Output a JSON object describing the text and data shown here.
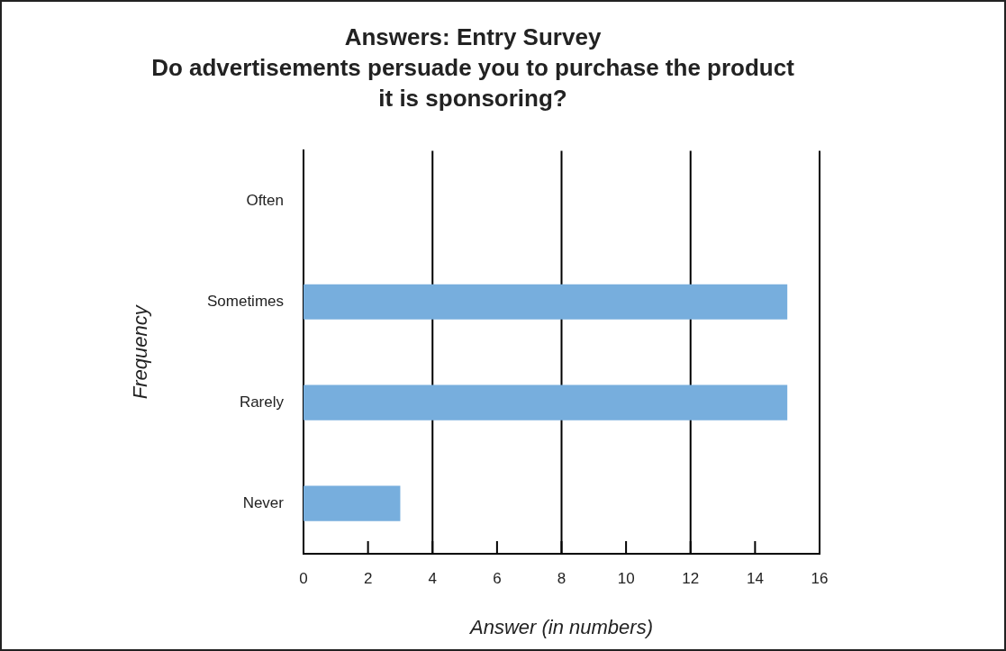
{
  "chart_data": {
    "type": "bar",
    "orientation": "horizontal",
    "title": "Answers: Entry Survey",
    "subtitle": "Do advertisements persuade you to purchase the product it is sponsoring?",
    "xlabel": "Answer (in numbers)",
    "ylabel": "Frequency",
    "categories": [
      "Often",
      "Sometimes",
      "Rarely",
      "Never"
    ],
    "values": [
      0,
      15,
      15,
      3
    ],
    "color": "#77aedd",
    "xlim": [
      0,
      16
    ],
    "xticks": [
      0,
      2,
      4,
      6,
      8,
      10,
      12,
      14,
      16
    ],
    "ref_lines": [
      {
        "axis": "x",
        "value": 4,
        "color": "#000000"
      },
      {
        "axis": "x",
        "value": 8,
        "color": "#000000"
      },
      {
        "axis": "x",
        "value": 12,
        "color": "#000000"
      }
    ],
    "grid": false,
    "legend": false
  }
}
